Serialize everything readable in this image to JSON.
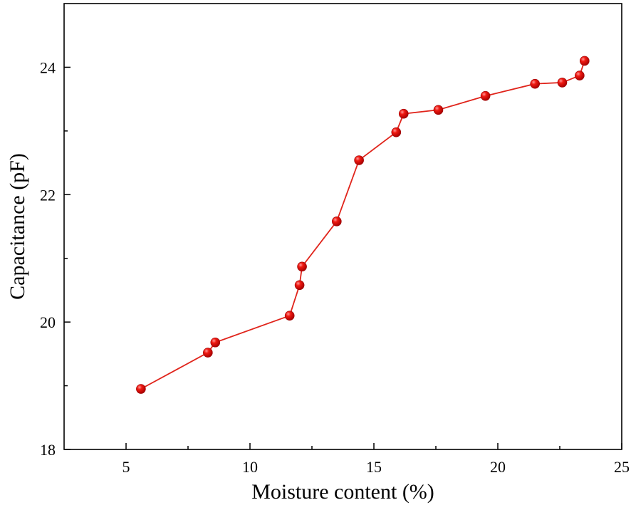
{
  "chart_data": {
    "type": "line",
    "xlabel": "Moisture content (%)",
    "ylabel": "Capacitance (pF)",
    "xlim": [
      2.5,
      25
    ],
    "ylim": [
      18,
      25
    ],
    "x_ticks": [
      5,
      10,
      15,
      20,
      25
    ],
    "y_ticks": [
      18,
      20,
      22,
      24
    ],
    "grid": false,
    "marker": "circle",
    "colors": {
      "line": "#e0241b",
      "marker": "#e8100c",
      "marker_highlight": "#ff9a9a",
      "axis": "#000000"
    },
    "series": [
      {
        "x": [
          5.6,
          8.3,
          8.6,
          11.6,
          12.0,
          12.1,
          13.5,
          14.4,
          15.9,
          16.2,
          17.6,
          19.5,
          21.5,
          22.6,
          23.3,
          23.5
        ],
        "y": [
          18.95,
          19.52,
          19.68,
          20.1,
          20.58,
          20.87,
          21.58,
          22.54,
          22.98,
          23.27,
          23.33,
          23.55,
          23.74,
          23.76,
          23.87,
          24.1
        ]
      }
    ]
  }
}
